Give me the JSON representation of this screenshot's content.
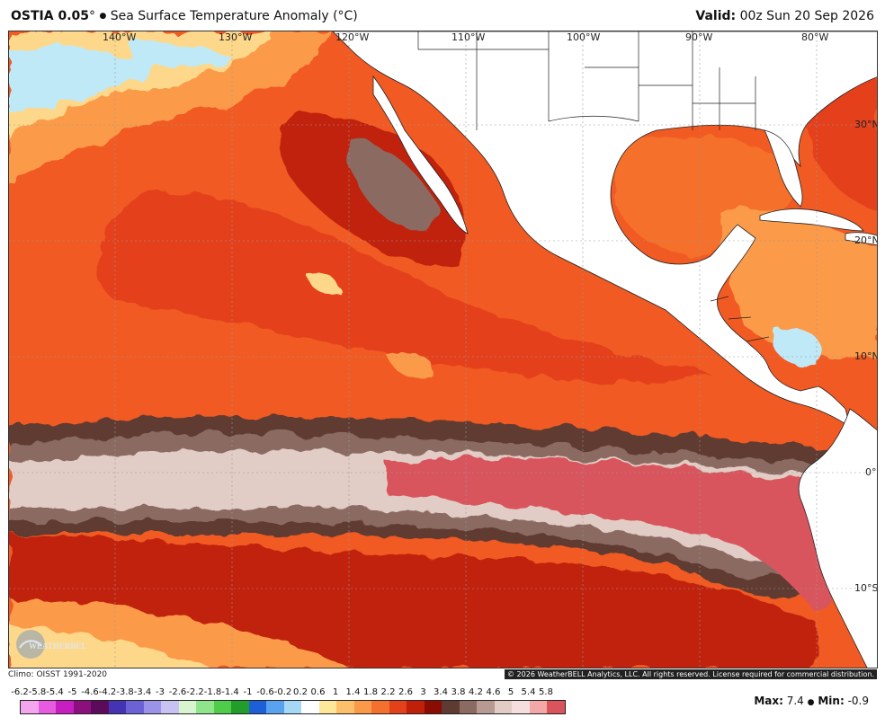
{
  "header": {
    "model": "OSTIA 0.05",
    "degree": "°",
    "separator": "●",
    "product": "Sea Surface Temperature Anomaly (°C)",
    "valid_label": "Valid:",
    "valid_time": "00z Sun 20 Sep 2026"
  },
  "map": {
    "longitude_labels": [
      "140°W",
      "130°W",
      "120°W",
      "110°W",
      "100°W",
      "90°W",
      "80°W"
    ],
    "latitude_labels": [
      "30°N",
      "20°N",
      "10°N",
      "0°",
      "10°S"
    ],
    "logo_text": "WeatherBELL",
    "colors": {
      "strong_warm": "#c0200a",
      "warm": "#f15a22",
      "mild_warm": "#fb9a4a",
      "slight_warm": "#fed88a",
      "cool": "#bfe9f7",
      "land": "#ffffff"
    }
  },
  "footer": {
    "climo": "Climo: OISST 1991-2020",
    "copyright": "© 2026 WeatherBELL Analytics, LLC. All rights reserved. License required for commercial distribution.",
    "max_label": "Max:",
    "max_value": "7.4",
    "bullet": "●",
    "min_label": "Min:",
    "min_value": "-0.9"
  },
  "colorbar": {
    "ticks": [
      "-6.2",
      "-5.8",
      "-5.4",
      "-5",
      "-4.6",
      "-4.2",
      "-3.8",
      "-3.4",
      "-3",
      "-2.6",
      "-2.2",
      "-1.8",
      "-1.4",
      "-1",
      "-0.6",
      "-0.2",
      "0.2",
      "0.6",
      "1",
      "1.4",
      "1.8",
      "2.2",
      "2.6",
      "3",
      "3.4",
      "3.8",
      "4.2",
      "4.6",
      "5",
      "5.4",
      "5.8"
    ],
    "colors": [
      "#f3a6ee",
      "#e75be0",
      "#c71fbf",
      "#8c0f7e",
      "#5c0a5a",
      "#4433b3",
      "#6b62d6",
      "#9b93e8",
      "#c8c2f3",
      "#d8f5d0",
      "#8fe58a",
      "#4fcc4a",
      "#229c2a",
      "#1d5fd6",
      "#5aa2ef",
      "#a4d8f6",
      "#ffffff",
      "#fde79a",
      "#fdbf6a",
      "#fa9a48",
      "#f5702c",
      "#e4401a",
      "#c0200a",
      "#8b0c02",
      "#5e3b32",
      "#8b6a62",
      "#b89a92",
      "#e2cdc6",
      "#f6dede",
      "#f4a7a7",
      "#d9545d"
    ]
  }
}
